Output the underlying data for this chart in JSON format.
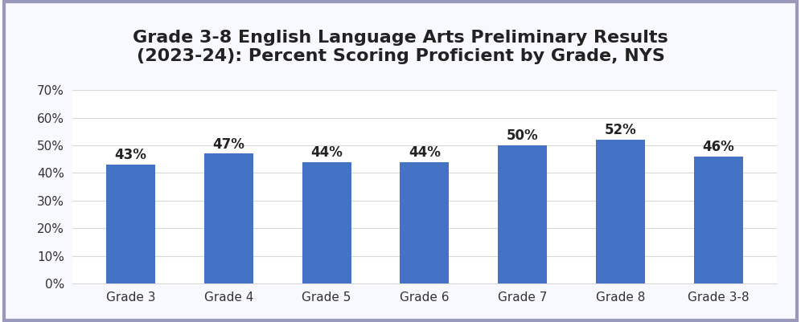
{
  "title": "Grade 3-8 English Language Arts Preliminary Results\n(2023-24): Percent Scoring Proficient by Grade, NYS",
  "categories": [
    "Grade 3",
    "Grade 4",
    "Grade 5",
    "Grade 6",
    "Grade 7",
    "Grade 8",
    "Grade 3-8"
  ],
  "values": [
    43,
    47,
    44,
    44,
    50,
    52,
    46
  ],
  "bar_color": "#4472C4",
  "ylim": [
    0,
    70
  ],
  "yticks": [
    0,
    10,
    20,
    30,
    40,
    50,
    60,
    70
  ],
  "title_fontsize": 16,
  "tick_fontsize": 11,
  "label_fontsize": 12,
  "background_color": "#ffffff",
  "outer_background": "#f8f8ff",
  "border_color": "#9999bb",
  "grid_color": "#d8d8d8"
}
